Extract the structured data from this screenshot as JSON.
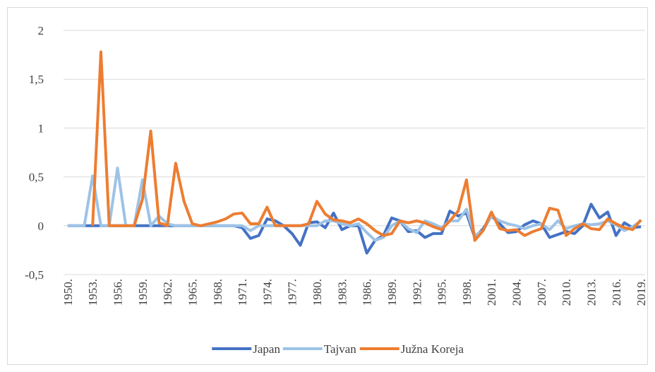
{
  "chart_data": {
    "type": "line",
    "categories": [
      "1950.",
      null,
      null,
      "1953.",
      null,
      null,
      "1956.",
      null,
      null,
      "1959.",
      null,
      null,
      "1962.",
      null,
      null,
      "1965.",
      null,
      null,
      "1968.",
      null,
      null,
      "1971.",
      null,
      null,
      "1974.",
      null,
      null,
      "1977.",
      null,
      null,
      "1980.",
      null,
      null,
      "1983.",
      null,
      null,
      "1986.",
      null,
      null,
      "1989.",
      null,
      null,
      "1992.",
      null,
      null,
      "1995.",
      null,
      null,
      "1998.",
      null,
      null,
      "2001.",
      null,
      null,
      "2004.",
      null,
      null,
      "2007.",
      null,
      null,
      "2010.",
      null,
      null,
      "2013.",
      null,
      null,
      "2016.",
      null,
      null,
      "2019."
    ],
    "series": [
      {
        "name": "Japan",
        "color": "#4472c4",
        "values": [
          0,
          0,
          0,
          0,
          0,
          0,
          0,
          0,
          0,
          0,
          0,
          0,
          0,
          0,
          0,
          0,
          0,
          0,
          0,
          0,
          0,
          -0.02,
          -0.13,
          -0.1,
          0.07,
          0.05,
          0,
          -0.08,
          -0.2,
          0.03,
          0.04,
          -0.02,
          0.13,
          -0.04,
          0,
          0,
          -0.28,
          -0.15,
          -0.1,
          0.08,
          0.05,
          -0.06,
          -0.05,
          -0.12,
          -0.08,
          -0.08,
          0.15,
          0.1,
          0.13,
          -0.12,
          -0.03,
          0.1,
          0.02,
          -0.07,
          -0.06,
          0.01,
          0.05,
          0.02,
          -0.12,
          -0.09,
          -0.06,
          -0.08,
          0,
          0.22,
          0.08,
          0.14,
          -0.1,
          0.03,
          -0.02,
          -0.01
        ]
      },
      {
        "name": "Tajvan",
        "color": "#9dc3e6",
        "values": [
          0,
          0,
          0,
          0.51,
          0,
          0,
          0.59,
          0,
          0,
          0.47,
          0,
          0.1,
          0.02,
          0,
          0,
          0,
          0,
          0,
          0,
          0,
          0,
          0,
          -0.05,
          0,
          0,
          0,
          0,
          0,
          0,
          0,
          0,
          0.05,
          0.05,
          0.02,
          0,
          0.02,
          -0.07,
          -0.15,
          -0.12,
          0,
          0.05,
          -0.03,
          -0.07,
          0.05,
          0.02,
          -0.02,
          0.05,
          0.05,
          0.17,
          -0.1,
          -0.05,
          0.1,
          0.05,
          0.02,
          0,
          -0.03,
          0,
          0.02,
          -0.04,
          0.05,
          -0.03,
          0,
          0.02,
          0.01,
          0.02,
          0.05,
          0.01,
          -0.05,
          -0.01,
          0.05
        ]
      },
      {
        "name": "Južna Koreja",
        "color": "#ed7d31",
        "values": [
          null,
          null,
          null,
          0,
          1.78,
          0,
          0,
          0,
          0,
          0.27,
          0.97,
          0.03,
          0,
          0.64,
          0.25,
          0.02,
          0,
          0.02,
          0.04,
          0.07,
          0.12,
          0.13,
          0.02,
          0.02,
          0.19,
          0,
          0,
          0,
          0,
          0.02,
          0.25,
          0.12,
          0.06,
          0.05,
          0.03,
          0.07,
          0.02,
          -0.05,
          -0.1,
          -0.08,
          0.05,
          0.03,
          0.05,
          0.03,
          -0.01,
          -0.04,
          0.05,
          0.15,
          0.47,
          -0.15,
          -0.05,
          0.14,
          -0.03,
          -0.05,
          -0.04,
          -0.1,
          -0.06,
          -0.03,
          0.18,
          0.16,
          -0.1,
          -0.03,
          0.02,
          -0.03,
          -0.04,
          0.07,
          0.02,
          -0.02,
          -0.04,
          0.06
        ]
      }
    ],
    "ylim": [
      -0.5,
      2
    ],
    "yticks": [
      {
        "value": -0.5,
        "label": "-0,5"
      },
      0,
      {
        "value": 0.5,
        "label": "0,5"
      },
      1,
      {
        "value": 1.5,
        "label": "1,5"
      },
      2
    ],
    "grid": true,
    "legend": "bottom"
  }
}
